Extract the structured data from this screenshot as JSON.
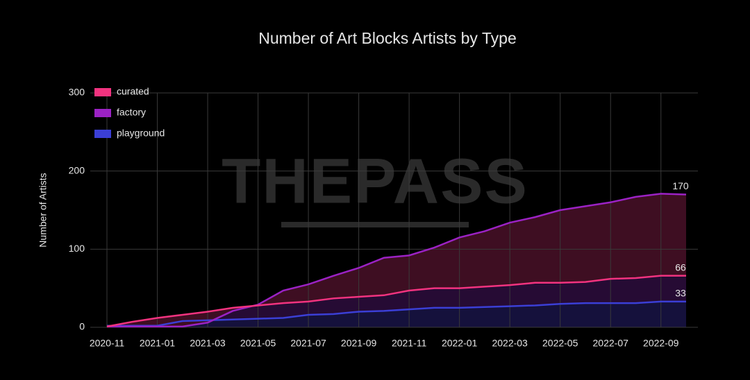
{
  "chart_data": {
    "type": "stacked_area",
    "title": "Number of Art Blocks Artists by Type",
    "watermark": "THEPASS",
    "y_label": "Number of Artists",
    "categories": [
      "2020-11",
      null,
      "2021-01",
      null,
      "2021-03",
      null,
      "2021-05",
      null,
      "2021-07",
      null,
      "2021-09",
      null,
      "2021-11",
      null,
      "2022-01",
      null,
      "2022-03",
      null,
      "2022-05",
      null,
      "2022-07",
      null,
      "2022-09",
      null
    ],
    "series": [
      {
        "name": "playground",
        "color": "#3b3fd6",
        "fill": "#15113c",
        "values": [
          2,
          2,
          2,
          8,
          9,
          10,
          11,
          12,
          16,
          17,
          20,
          21,
          23,
          25,
          25,
          26,
          27,
          28,
          30,
          31,
          31,
          31,
          33,
          33
        ]
      },
      {
        "name": "factory",
        "color": "#9b22c4",
        "fill": "#260b34",
        "values": [
          1,
          1,
          1,
          1,
          6,
          21,
          29,
          47,
          55,
          66,
          76,
          89,
          92,
          102,
          115,
          123,
          134,
          141,
          150,
          155,
          160,
          167,
          171,
          170
        ]
      },
      {
        "name": "curated",
        "color": "#f2337f",
        "fill": "#3e0e22",
        "values": [
          1,
          7,
          12,
          16,
          20,
          25,
          28,
          31,
          33,
          37,
          39,
          41,
          47,
          50,
          50,
          52,
          54,
          57,
          57,
          58,
          62,
          63,
          66,
          66
        ]
      }
    ],
    "ylim": [
      0,
      300
    ],
    "yticks": [
      0,
      100,
      200,
      300
    ],
    "grid": true,
    "legend": "top-left"
  }
}
